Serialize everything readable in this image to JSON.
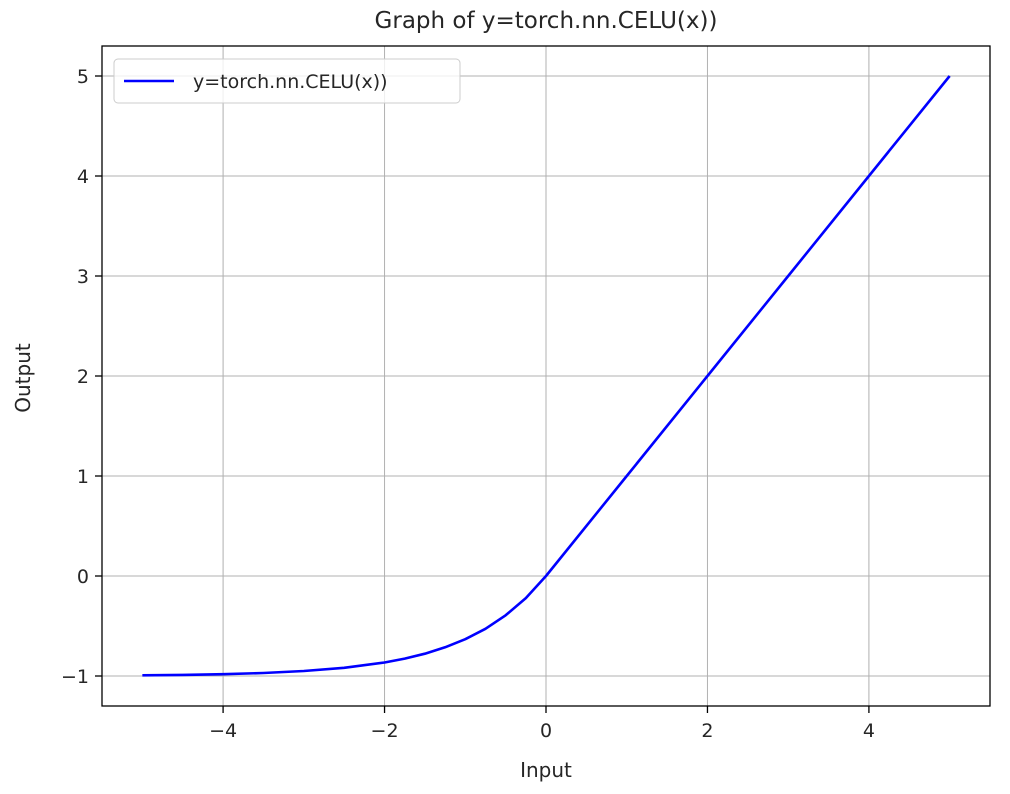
{
  "chart_data": {
    "type": "line",
    "title": "Graph of y=torch.nn.CELU(x))",
    "xlabel": "Input",
    "ylabel": "Output",
    "xlim": [
      -5.5,
      5.5
    ],
    "ylim": [
      -1.3,
      5.3
    ],
    "xticks": [
      -4,
      -2,
      0,
      2,
      4
    ],
    "yticks": [
      -1,
      0,
      1,
      2,
      3,
      4,
      5
    ],
    "xtick_labels": [
      "−4",
      "−2",
      "0",
      "2",
      "4"
    ],
    "ytick_labels": [
      "−1",
      "0",
      "1",
      "2",
      "3",
      "4",
      "5"
    ],
    "grid": true,
    "legend_position": "upper-left",
    "series": [
      {
        "name": "y=torch.nn.CELU(x))",
        "color": "#0000ff",
        "x": [
          -5,
          -4.5,
          -4,
          -3.5,
          -3,
          -2.5,
          -2,
          -1.75,
          -1.5,
          -1.25,
          -1,
          -0.75,
          -0.5,
          -0.25,
          0,
          1,
          2,
          3,
          4,
          5
        ],
        "y": [
          -0.993,
          -0.989,
          -0.982,
          -0.97,
          -0.95,
          -0.918,
          -0.865,
          -0.826,
          -0.777,
          -0.713,
          -0.632,
          -0.528,
          -0.393,
          -0.221,
          0,
          1,
          2,
          3,
          4,
          5
        ]
      }
    ]
  }
}
